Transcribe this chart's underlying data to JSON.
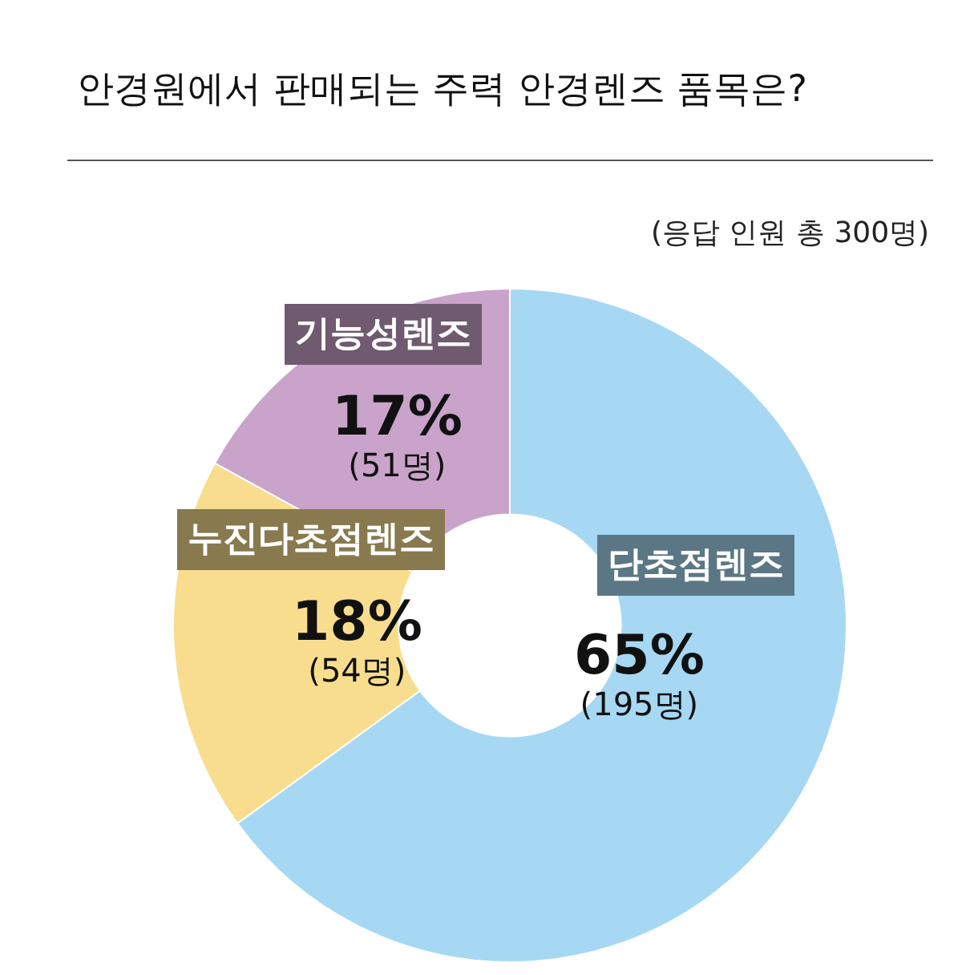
{
  "chart_data": {
    "type": "donut",
    "title": "안경원에서 판매되는 주력 안경렌즈 품목은?",
    "subtitle": "(응답 인원 총 300명)",
    "categories": [
      "단초점렌즈",
      "누진다초점렌즈",
      "기능성렌즈"
    ],
    "values": [
      65,
      18,
      17
    ],
    "colors": [
      "#a6d8f4",
      "#f8dd8e",
      "#c9a3c9"
    ],
    "value_labels": [
      "65%\n(195명)",
      "18%\n(54명)",
      "17%\n(51명)"
    ]
  }
}
